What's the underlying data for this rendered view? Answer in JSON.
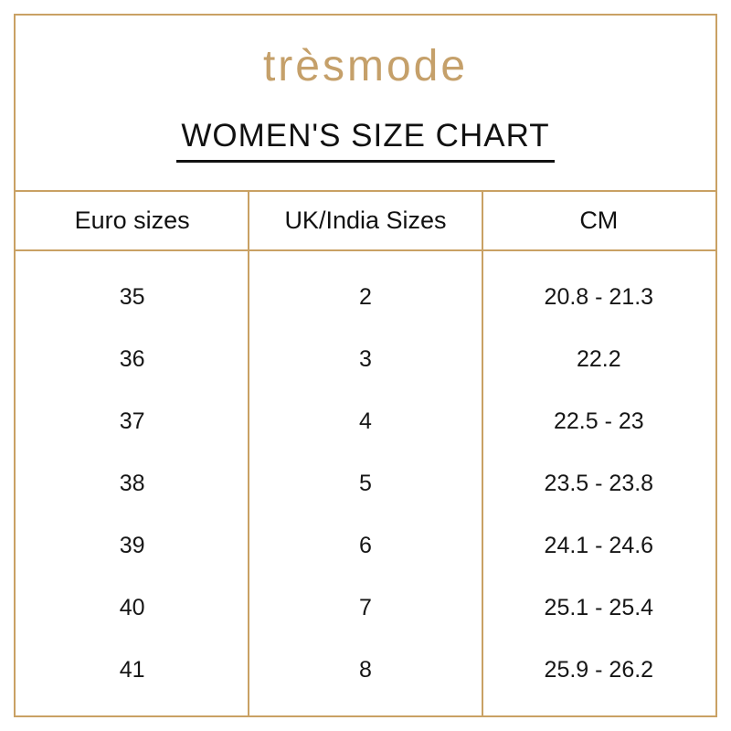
{
  "brand": {
    "logo_text": "trèsmode"
  },
  "title": "WOMEN'S SIZE CHART",
  "chart_data": {
    "type": "table",
    "title": "WOMEN'S SIZE CHART",
    "columns": [
      "Euro sizes",
      "UK/India Sizes",
      "CM"
    ],
    "rows": [
      [
        "35",
        "2",
        "20.8 - 21.3"
      ],
      [
        "36",
        "3",
        "22.2"
      ],
      [
        "37",
        "4",
        "22.5 - 23"
      ],
      [
        "38",
        "5",
        "23.5 - 23.8"
      ],
      [
        "39",
        "6",
        "24.1 - 24.6"
      ],
      [
        "40",
        "7",
        "25.1 - 25.4"
      ],
      [
        "41",
        "8",
        "25.9 - 26.2"
      ]
    ],
    "layout_hints": {
      "grid": "gold vertical column separators full height, horizontal rule under header only",
      "alignment": "all cells center-aligned"
    }
  },
  "colors": {
    "border_gold": "#c9a164",
    "brand_gold": "#c5a06a",
    "text": "#161616",
    "background": "#ffffff"
  }
}
